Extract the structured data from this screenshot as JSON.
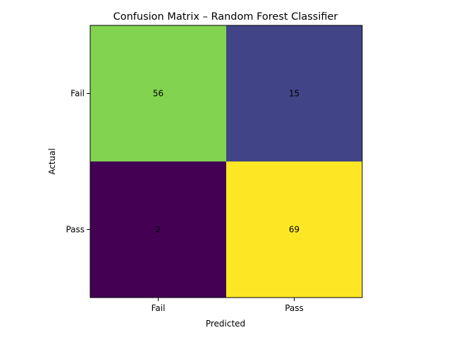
{
  "chart_data": {
    "type": "heatmap",
    "title": "Confusion Matrix – Random Forest Classifier",
    "xlabel": "Predicted",
    "ylabel": "Actual",
    "x_categories": [
      "Fail",
      "Pass"
    ],
    "y_categories": [
      "Fail",
      "Pass"
    ],
    "values": [
      [
        56,
        15
      ],
      [
        2,
        69
      ]
    ],
    "colormap": "viridis",
    "cell_colors": [
      [
        "#82d34f",
        "#414487"
      ],
      [
        "#440154",
        "#fde725"
      ]
    ],
    "grid": false,
    "legend": "none"
  }
}
